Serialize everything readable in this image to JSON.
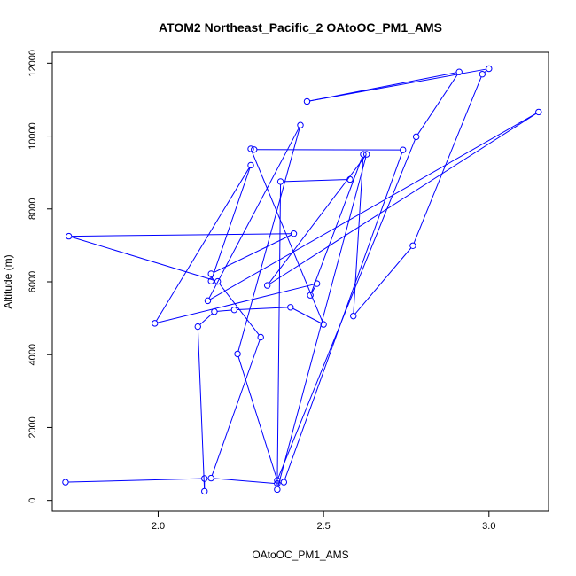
{
  "chart_data": {
    "type": "scatter",
    "title": "ATOM2 Northeast_Pacific_2 OAtoOC_PM1_AMS",
    "xlabel": "OAtoOC_PM1_AMS",
    "ylabel": "Altitude (m)",
    "xlim": [
      1.68,
      3.18
    ],
    "ylim": [
      -300,
      12300
    ],
    "xticks": [
      2.0,
      2.5,
      3.0
    ],
    "xtick_labels": [
      "2.0",
      "2.5",
      "3.0"
    ],
    "yticks": [
      0,
      2000,
      4000,
      6000,
      8000,
      10000,
      12000
    ],
    "ytick_labels": [
      "0",
      "2000",
      "4000",
      "6000",
      "8000",
      "10000",
      "12000"
    ],
    "grid": false,
    "line_color": "#0000ff",
    "marker_color": "#0000ff",
    "series": [
      {
        "x": [
          1.72,
          2.14,
          2.14,
          2.12,
          2.17,
          2.23,
          2.4,
          2.5,
          2.28,
          2.29,
          2.74,
          2.38,
          2.36,
          2.16,
          2.31,
          2.18,
          1.73,
          2.41,
          2.16,
          2.16,
          2.28,
          1.99,
          2.48,
          2.46,
          2.62,
          2.59,
          2.77,
          2.98,
          3.0,
          2.45,
          2.91,
          2.78,
          2.36,
          2.24,
          2.43,
          2.15,
          3.15,
          2.33,
          2.63,
          2.36,
          2.37,
          2.58
        ],
        "y": [
          500,
          600,
          250,
          4770,
          5180,
          5230,
          5300,
          4830,
          9650,
          9630,
          9620,
          500,
          460,
          610,
          4480,
          6010,
          7250,
          7320,
          6220,
          6020,
          9200,
          4860,
          5950,
          5630,
          9500,
          5060,
          6990,
          11700,
          11850,
          10950,
          11760,
          9980,
          550,
          4020,
          10300,
          5480,
          10660,
          5900,
          9500,
          300,
          8750,
          8810
        ]
      }
    ]
  }
}
